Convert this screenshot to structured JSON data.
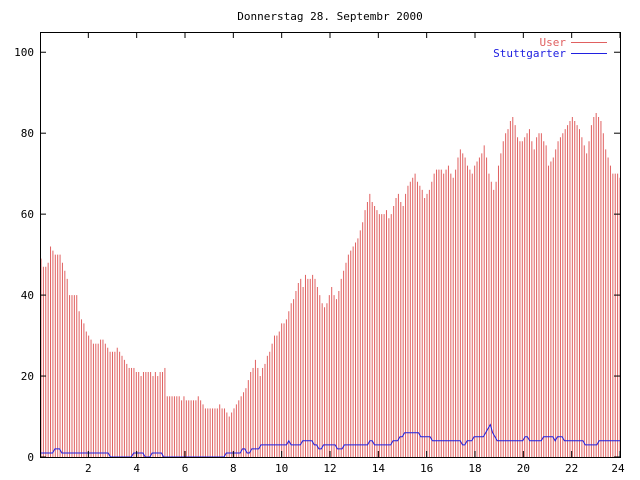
{
  "chart_data": {
    "type": "bar",
    "title": "Donnerstag 28. Septembr 2000",
    "xlabel": "",
    "ylabel": "",
    "xlim": [
      0,
      24
    ],
    "ylim": [
      0,
      105
    ],
    "x_ticks": [
      2,
      4,
      6,
      8,
      10,
      12,
      14,
      16,
      18,
      20,
      22,
      24
    ],
    "x_tick_labels": [
      "2",
      "4",
      "6",
      "8",
      "10",
      "12",
      "14",
      "16",
      "18",
      "20",
      "22",
      "24"
    ],
    "y_ticks": [
      0,
      20,
      40,
      60,
      80,
      100
    ],
    "y_tick_labels": [
      "0",
      "20",
      "40",
      "60",
      "80",
      "100"
    ],
    "grid": false,
    "legend_position": "top-right",
    "series": [
      {
        "name": "User",
        "style": "impulses",
        "color": "#e06060",
        "values": [
          49,
          47,
          47,
          48,
          52,
          51,
          50,
          50,
          50,
          48,
          46,
          44,
          40,
          40,
          40,
          40,
          36,
          34,
          33,
          31,
          30,
          29,
          28,
          28,
          28,
          29,
          29,
          28,
          27,
          26,
          26,
          26,
          27,
          26,
          25,
          24,
          23,
          22,
          22,
          22,
          21,
          21,
          20,
          21,
          21,
          21,
          21,
          20,
          21,
          20,
          21,
          21,
          22,
          15,
          15,
          15,
          15,
          15,
          15,
          14,
          15,
          14,
          14,
          14,
          14,
          14,
          15,
          14,
          13,
          12,
          12,
          12,
          12,
          12,
          12,
          13,
          12,
          12,
          11,
          10,
          11,
          12,
          13,
          14,
          15,
          16,
          17,
          19,
          21,
          22,
          24,
          22,
          20,
          22,
          23,
          25,
          26,
          28,
          30,
          30,
          31,
          33,
          33,
          34,
          36,
          38,
          39,
          41,
          43,
          44,
          42,
          45,
          44,
          44,
          45,
          44,
          42,
          40,
          38,
          37,
          38,
          40,
          42,
          40,
          39,
          41,
          44,
          46,
          48,
          50,
          51,
          52,
          53,
          54,
          56,
          58,
          61,
          63,
          65,
          63,
          62,
          61,
          60,
          60,
          60,
          61,
          59,
          60,
          62,
          64,
          65,
          63,
          62,
          65,
          67,
          68,
          69,
          70,
          68,
          67,
          66,
          64,
          65,
          66,
          68,
          70,
          71,
          71,
          71,
          70,
          71,
          72,
          70,
          69,
          71,
          74,
          76,
          75,
          74,
          72,
          71,
          70,
          72,
          73,
          74,
          75,
          77,
          74,
          70,
          68,
          66,
          68,
          72,
          75,
          78,
          80,
          81,
          83,
          84,
          82,
          79,
          78,
          78,
          79,
          80,
          81,
          78,
          76,
          79,
          80,
          80,
          78,
          77,
          72,
          73,
          74,
          76,
          78,
          79,
          80,
          81,
          82,
          83,
          84,
          83,
          82,
          81,
          79,
          77,
          75,
          78,
          82,
          84,
          85,
          84,
          83,
          80,
          76,
          74,
          72,
          70,
          70,
          70,
          69
        ]
      },
      {
        "name": "Stuttgarter",
        "style": "line",
        "color": "#2020e0",
        "values": [
          1,
          1,
          1,
          1,
          1,
          1,
          2,
          2,
          2,
          1,
          1,
          1,
          1,
          1,
          1,
          1,
          1,
          1,
          1,
          1,
          1,
          1,
          1,
          1,
          1,
          1,
          1,
          1,
          1,
          1,
          0,
          0,
          0,
          0,
          0,
          0,
          0,
          0,
          0,
          0,
          1,
          1,
          1,
          1,
          1,
          0,
          0,
          0,
          1,
          1,
          1,
          1,
          1,
          0,
          0,
          0,
          0,
          0,
          0,
          0,
          0,
          0,
          0,
          0,
          0,
          0,
          0,
          0,
          0,
          0,
          0,
          0,
          0,
          0,
          0,
          0,
          0,
          0,
          0,
          0,
          1,
          1,
          1,
          1,
          1,
          1,
          1,
          2,
          2,
          1,
          1,
          2,
          2,
          2,
          2,
          3,
          3,
          3,
          3,
          3,
          3,
          3,
          3,
          3,
          3,
          3,
          3,
          4,
          3,
          3,
          3,
          3,
          3,
          4,
          4,
          4,
          4,
          4,
          3,
          3,
          2,
          2,
          3,
          3,
          3,
          3,
          3,
          3,
          2,
          2,
          2,
          3,
          3,
          3,
          3,
          3,
          3,
          3,
          3,
          3,
          3,
          3,
          4,
          4,
          3,
          3,
          3,
          3,
          3,
          3,
          3,
          3,
          4,
          4,
          4,
          5,
          5,
          6,
          6,
          6,
          6,
          6,
          6,
          6,
          5,
          5,
          5,
          5,
          5,
          4,
          4,
          4,
          4,
          4,
          4,
          4,
          4,
          4,
          4,
          4,
          4,
          4,
          3,
          3,
          4,
          4,
          4,
          5,
          5,
          5,
          5,
          5,
          6,
          7,
          8,
          6,
          5,
          4,
          4,
          4,
          4,
          4,
          4,
          4,
          4,
          4,
          4,
          4,
          4,
          5,
          5,
          4,
          4,
          4,
          4,
          4,
          4,
          5,
          5,
          5,
          5,
          5,
          4,
          5,
          5,
          5,
          4,
          4,
          4,
          4,
          4,
          4,
          4,
          4,
          4,
          3,
          3,
          3,
          3,
          3,
          3,
          4,
          4,
          4,
          4,
          4,
          4,
          4,
          4,
          4,
          4
        ]
      }
    ]
  }
}
